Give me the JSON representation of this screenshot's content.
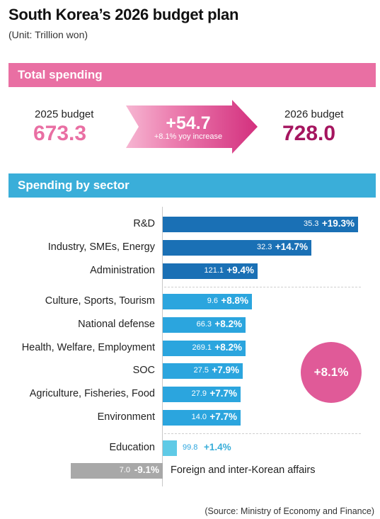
{
  "title": "South Korea’s 2026 budget plan",
  "unit": "(Unit: Trillion won)",
  "total_section": {
    "heading": "Total spending",
    "budget_2025_label": "2025 budget",
    "budget_2025_value": "673.3",
    "increase_value": "+54.7",
    "increase_note": "+8.1% yoy increase",
    "budget_2026_label": "2026 budget",
    "budget_2026_value": "728.0"
  },
  "sector_section": {
    "heading": "Spending by sector",
    "overall_change": "+8.1%"
  },
  "source": "(Source: Ministry of Economy and Finance)",
  "colors": {
    "pink": "#e96fa3",
    "magenta": "#a5155f",
    "circle": "#e05a98",
    "sector_band": "#3aaed9",
    "bar_dark": "#1a70b5",
    "bar_medium": "#2ba5de",
    "bar_light": "#5fcae6",
    "bar_negative": "#a8a8a8"
  },
  "chart_data": {
    "type": "bar",
    "orientation": "horizontal",
    "title": "Spending by sector",
    "categories": [
      "R&D",
      "Industry, SMEs, Energy",
      "Administration",
      "Culture, Sports, Tourism",
      "National defense",
      "Health, Welfare, Employment",
      "SOC",
      "Agriculture, Fisheries, Food",
      "Environment",
      "Education",
      "Foreign and inter-Korean affairs"
    ],
    "budget_2026": [
      "35.3",
      "32.3",
      "121.1",
      "9.6",
      "66.3",
      "269.1",
      "27.5",
      "27.9",
      "14.0",
      "99.8",
      "7.0"
    ],
    "yoy_change_pct": [
      19.3,
      14.7,
      9.4,
      8.8,
      8.2,
      8.2,
      7.9,
      7.7,
      7.7,
      1.4,
      -9.1
    ],
    "yoy_change_labels": [
      "+19.3%",
      "+14.7%",
      "+9.4%",
      "+8.8%",
      "+8.2%",
      "+8.2%",
      "+7.9%",
      "+7.7%",
      "+7.7%",
      "+1.4%",
      "-9.1%"
    ],
    "groups": [
      "dark",
      "dark",
      "dark",
      "medium",
      "medium",
      "medium",
      "medium",
      "medium",
      "medium",
      "light",
      "negative"
    ]
  }
}
